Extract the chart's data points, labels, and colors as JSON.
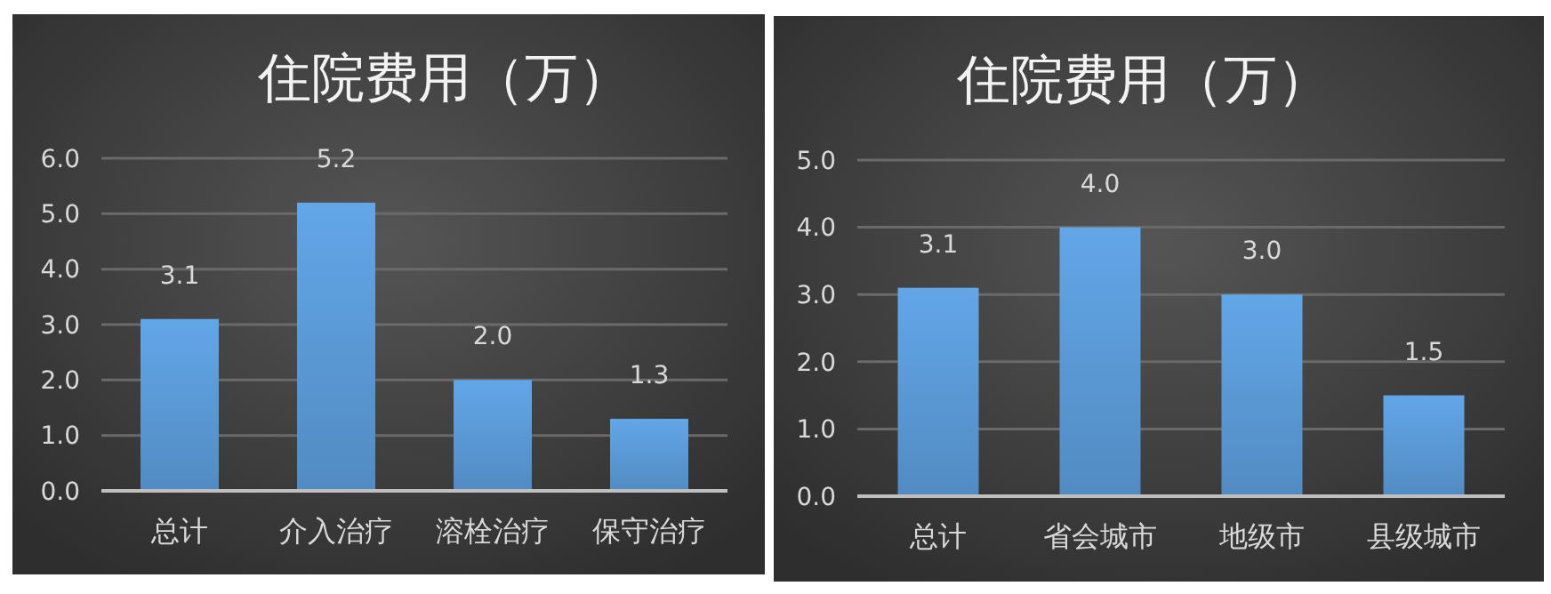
{
  "chart_data": [
    {
      "type": "bar",
      "title": "住院费用（万）",
      "categories": [
        "总计",
        "介入治疗",
        "溶栓治疗",
        "保守治疗"
      ],
      "values": [
        3.1,
        5.2,
        2.0,
        1.3
      ],
      "value_labels": [
        "3.1",
        "5.2",
        "2.0",
        "1.3"
      ],
      "color": "#5b9bd8",
      "ylim": [
        0,
        6
      ],
      "yticks": [
        {
          "value": 0,
          "label": "0.0"
        },
        {
          "value": 1,
          "label": "1.0"
        },
        {
          "value": 2,
          "label": "2.0"
        },
        {
          "value": 3,
          "label": "3.0"
        },
        {
          "value": 4,
          "label": "4.0"
        },
        {
          "value": 5,
          "label": "5.0"
        },
        {
          "value": 6,
          "label": "6.0"
        }
      ],
      "grid": "y"
    },
    {
      "type": "bar",
      "title": "住院费用（万）",
      "categories": [
        "总计",
        "省会城市",
        "地级市",
        "县级城市"
      ],
      "values": [
        3.1,
        4.0,
        3.0,
        1.5
      ],
      "value_labels": [
        "3.1",
        "4.0",
        "3.0",
        "1.5"
      ],
      "color": "#5b9bd8",
      "ylim": [
        0,
        5
      ],
      "yticks": [
        {
          "value": 0,
          "label": "0.0"
        },
        {
          "value": 1,
          "label": "1.0"
        },
        {
          "value": 2,
          "label": "2.0"
        },
        {
          "value": 3,
          "label": "3.0"
        },
        {
          "value": 4,
          "label": "4.0"
        },
        {
          "value": 5,
          "label": "5.0"
        }
      ],
      "grid": "y"
    }
  ]
}
